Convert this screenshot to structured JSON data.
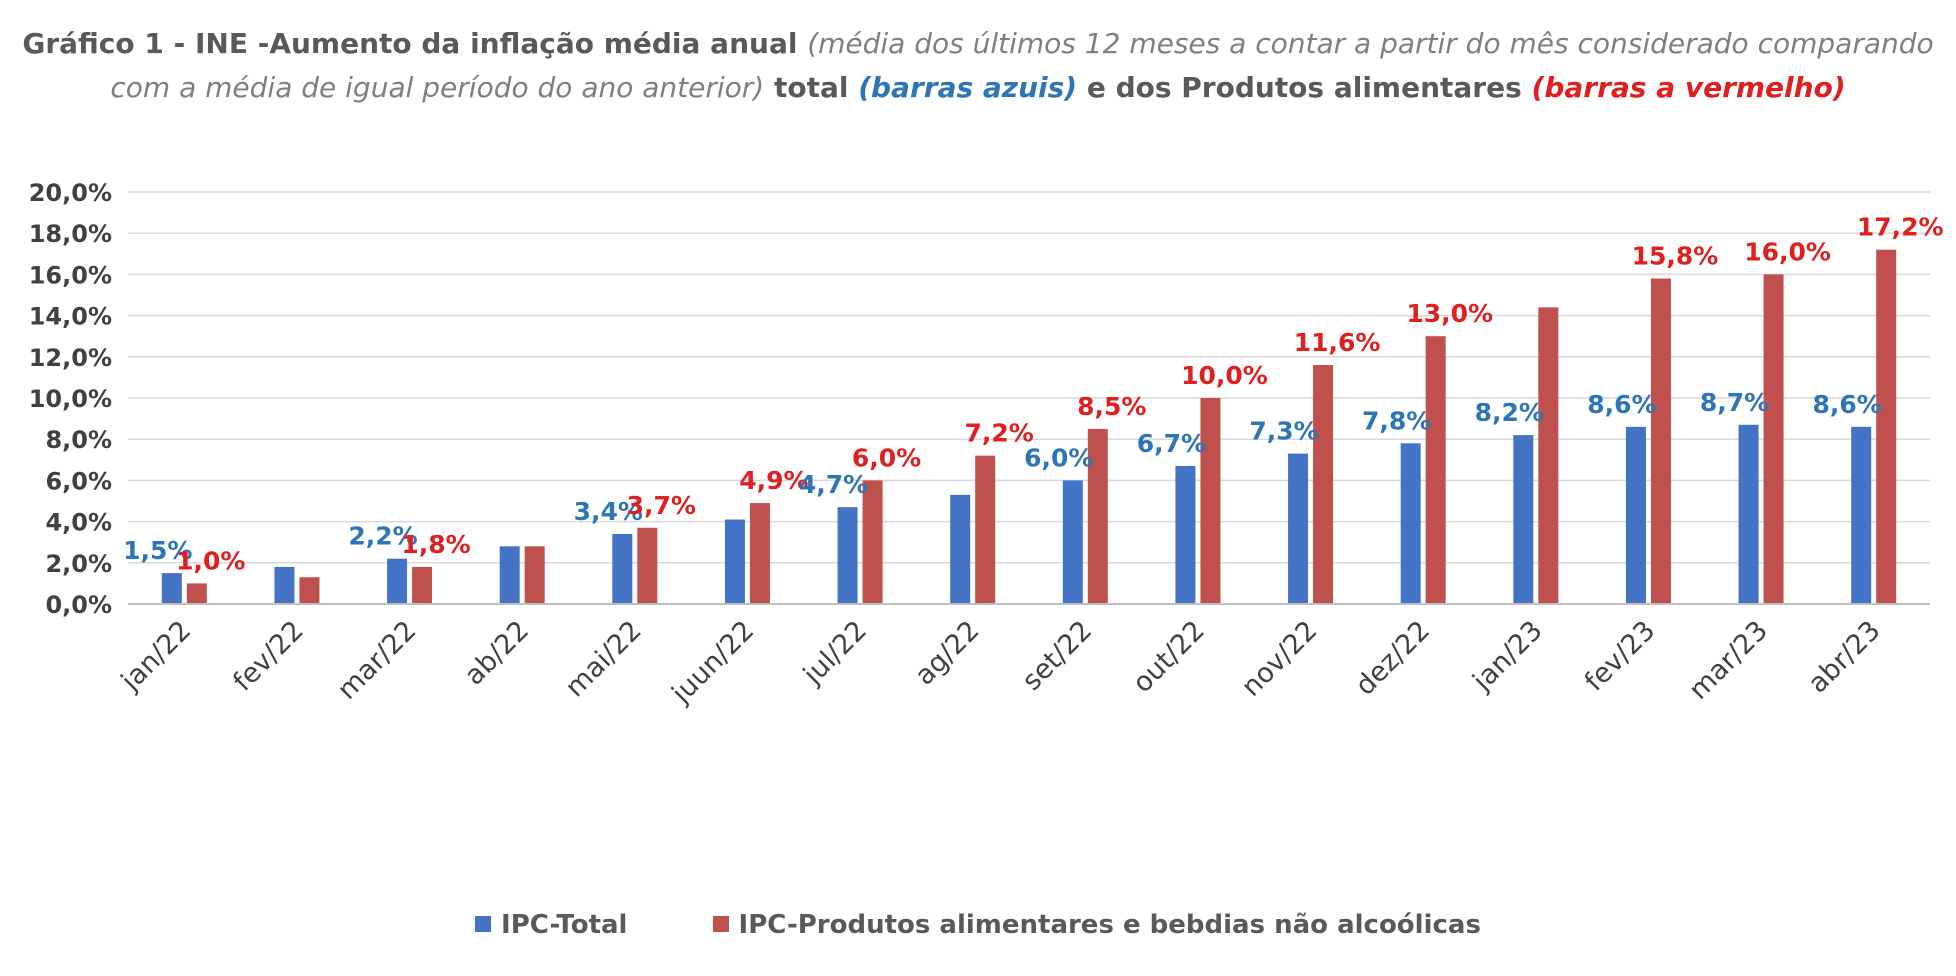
{
  "title": {
    "part1": "Gráfico 1 - INE -Aumento da inflação média anual ",
    "part2": "(média dos últimos 12 meses a contar a partir do mês considerado comparando com a média de igual período do ano anterior)",
    "part3": " total ",
    "part4": "(barras azuis)",
    "part5": " e dos Produtos alimentares ",
    "part6": "(barras a vermelho)"
  },
  "colors": {
    "blue": "#4472c4",
    "red": "#c0504d",
    "blue_label": "#2e75b6",
    "red_label": "#e02020",
    "grid": "#d9d9d9",
    "axis_text": "#404040"
  },
  "chart_data": {
    "type": "bar",
    "categories": [
      "jan/22",
      "fev/22",
      "mar/22",
      "ab/22",
      "mai/22",
      "juun/22",
      "jul/22",
      "ag/22",
      "set/22",
      "out/22",
      "nov/22",
      "dez/22",
      "jan/23",
      "fev/23",
      "mar/23",
      "abr/23"
    ],
    "series": [
      {
        "name": "IPC-Total",
        "values": [
          1.5,
          1.8,
          2.2,
          2.8,
          3.4,
          4.1,
          4.7,
          5.3,
          6.0,
          6.7,
          7.3,
          7.8,
          8.2,
          8.6,
          8.7,
          8.6
        ],
        "labels": [
          "1,5%",
          "",
          "2,2%",
          "",
          "3,4%",
          "",
          "4,7%",
          "",
          "6,0%",
          "6,7%",
          "7,3%",
          "7,8%",
          "8,2%",
          "8,6%",
          "8,7%",
          "8,6%"
        ]
      },
      {
        "name": "IPC-Produtos alimentares e bebdias não alcoólicas",
        "values": [
          1.0,
          1.3,
          1.8,
          2.8,
          3.7,
          4.9,
          6.0,
          7.2,
          8.5,
          10.0,
          11.6,
          13.0,
          14.4,
          15.8,
          16.0,
          17.2
        ],
        "labels": [
          "1,0%",
          "",
          "1,8%",
          "",
          "3,7%",
          "4,9%",
          "6,0%",
          "7,2%",
          "8,5%",
          "10,0%",
          "11,6%",
          "13,0%",
          "",
          "15,8%",
          "16,0%",
          "17,2%"
        ]
      }
    ],
    "ylim": [
      0,
      20
    ],
    "yticks": [
      "0,0%",
      "2,0%",
      "4,0%",
      "6,0%",
      "8,0%",
      "10,0%",
      "12,0%",
      "14,0%",
      "16,0%",
      "18,0%",
      "20,0%"
    ],
    "grid": true,
    "legend_position": "bottom"
  }
}
